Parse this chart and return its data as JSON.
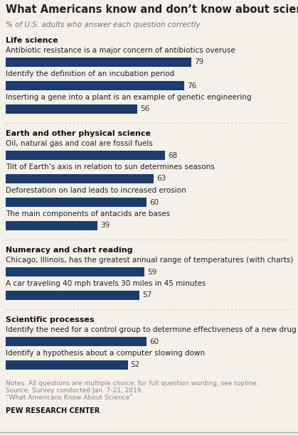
{
  "title": "What Americans know and don’t know about science",
  "subtitle": "% of U.S. adults who answer each question correctly",
  "bar_color": "#1c3d6e",
  "sections": [
    {
      "name": "Life science",
      "items": [
        {
          "label": "Antibiotic resistance is a major concern of antibiotics overuse",
          "value": 79
        },
        {
          "label": "Identify the definition of an incubation period",
          "value": 76
        },
        {
          "label": "Inserting a gene into a plant is an example of genetic engineering",
          "value": 56
        }
      ]
    },
    {
      "name": "Earth and other physical science",
      "items": [
        {
          "label": "Oil, natural gas and coal are fossil fuels",
          "value": 68
        },
        {
          "label": "Tilt of Earth’s axis in relation to sun determines seasons",
          "value": 63
        },
        {
          "label": "Deforestation on land leads to increased erosion",
          "value": 60
        },
        {
          "label": "The main components of antacids are bases",
          "value": 39
        }
      ]
    },
    {
      "name": "Numeracy and chart reading",
      "items": [
        {
          "label": "Chicago, Illinois, has the greatest annual range of temperatures (with charts)",
          "value": 59
        },
        {
          "label": "A car traveling 40 mph travels 30 miles in 45 minutes",
          "value": 57
        }
      ]
    },
    {
      "name": "Scientific processes",
      "items": [
        {
          "label": "Identify the need for a control group to determine effectiveness of a new drug",
          "value": 60
        },
        {
          "label": "Identify a hypothesis about a computer slowing down",
          "value": 52
        }
      ]
    }
  ],
  "notes_lines": [
    "Notes: All questions are multiple choice; for full question wording, see topline.",
    "Source: Survey conducted Jan. 7-21, 2019.",
    "“What Americans Know About Science”"
  ],
  "footer": "PEW RESEARCH CENTER",
  "bg_color": "#f4f1eb",
  "text_color": "#222222",
  "subtitle_color": "#777777",
  "section_color": "#111111",
  "item_color": "#222222",
  "value_color": "#333333",
  "notes_color": "#888888",
  "footer_color": "#111111",
  "divider_color": "#c8c8c8"
}
